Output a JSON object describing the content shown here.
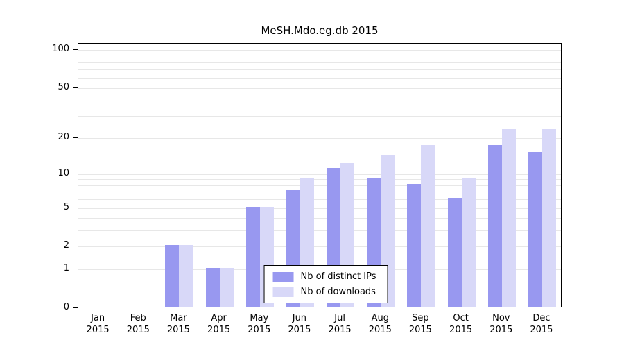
{
  "chart_data": {
    "type": "bar",
    "title": "MeSH.Mdo.eg.db 2015",
    "categories": [
      "Jan",
      "Feb",
      "Mar",
      "Apr",
      "May",
      "Jun",
      "Jul",
      "Aug",
      "Sep",
      "Oct",
      "Nov",
      "Dec"
    ],
    "category_year": "2015",
    "series": [
      {
        "name": "Nb of distinct IPs",
        "color": "#9898f0",
        "values": [
          0,
          0,
          2,
          1,
          5,
          7,
          11,
          9,
          8,
          6,
          17,
          15
        ]
      },
      {
        "name": "Nb of downloads",
        "color": "#d8d8f8",
        "values": [
          0,
          0,
          2,
          1,
          5,
          9,
          12,
          14,
          17,
          9,
          23,
          23
        ]
      }
    ],
    "y_ticks": [
      0,
      1,
      2,
      5,
      10,
      20,
      50,
      100
    ],
    "y_minor_gridlines": [
      1,
      2,
      3,
      4,
      5,
      6,
      7,
      8,
      9,
      10,
      20,
      30,
      40,
      50,
      60,
      70,
      80,
      90,
      100
    ],
    "y_scale": "log10(1+v)",
    "ylim": [
      0,
      112
    ],
    "grid_color": "#e7e7e7",
    "axis_color": "#000000",
    "legend_position": "bottom-center",
    "grid": "on"
  }
}
